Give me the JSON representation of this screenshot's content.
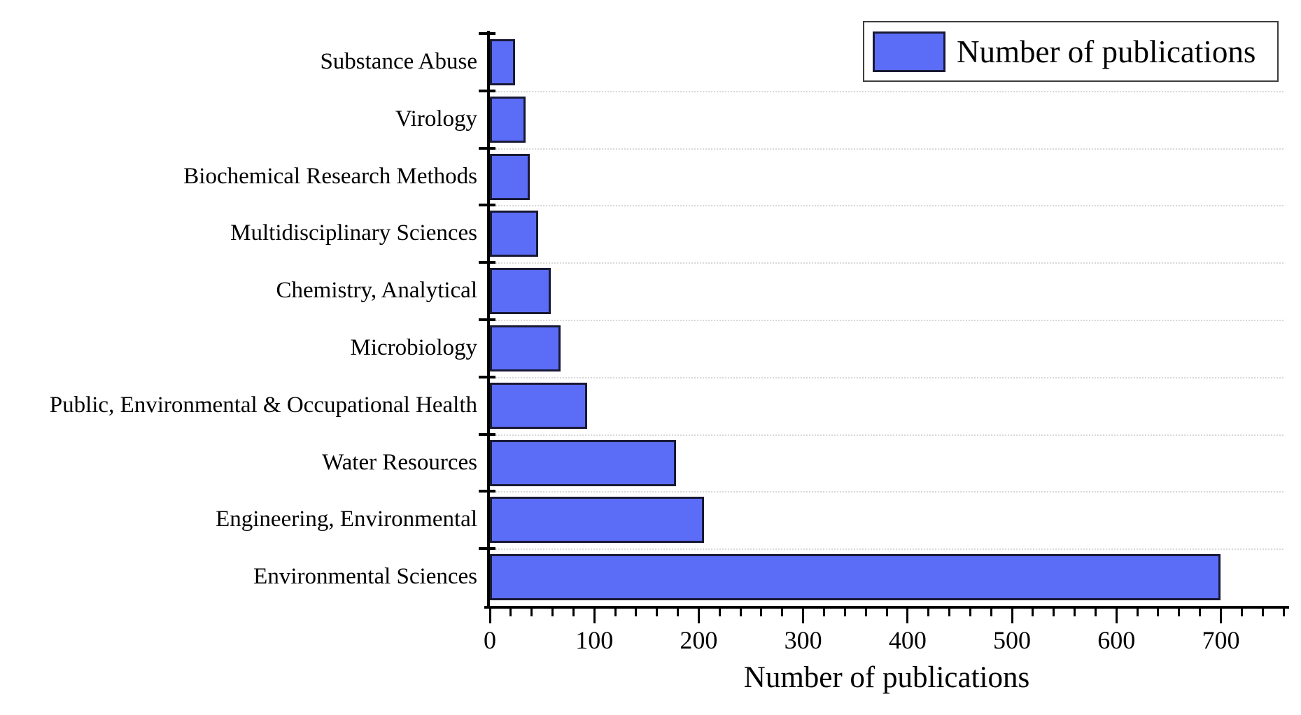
{
  "figure": {
    "background_color": "#ffffff",
    "text_color": "#000000",
    "axis_color": "#000000"
  },
  "legend": {
    "label": "Number of publications",
    "position": "top-right",
    "border_color": "#3d3d3d"
  },
  "chart_data": {
    "type": "bar",
    "orientation": "horizontal",
    "title": "",
    "xlabel": "Number of publications",
    "ylabel": "",
    "legend": {
      "label": "Number of publications",
      "position": "top-right"
    },
    "categories": [
      "Substance Abuse",
      "Virology",
      "Biochemical Research Methods",
      "Multidisciplinary Sciences",
      "Chemistry, Analytical",
      "Microbiology",
      "Public, Environmental & Occupational Health",
      "Water Resources",
      "Engineering, Environmental",
      "Environmental Sciences"
    ],
    "values": [
      24,
      34,
      38,
      46,
      58,
      68,
      93,
      178,
      205,
      700
    ],
    "xlim": [
      0,
      760
    ],
    "x_major_ticks": [
      0,
      100,
      200,
      300,
      400,
      500,
      600,
      700
    ],
    "x_minor_tick_step": 20,
    "grid": "horizontal dotted lines at category boundaries",
    "bar_fill_color": "#5b6cf7",
    "bar_edge_color": "#191936",
    "grid_color": "#d8d8d8"
  }
}
